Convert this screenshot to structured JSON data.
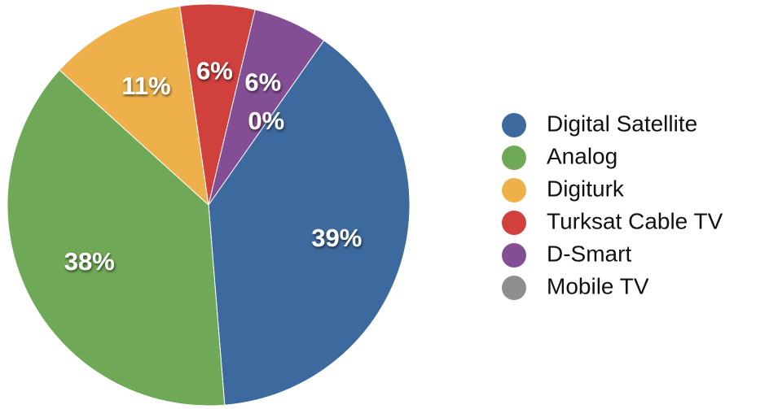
{
  "chart_data": {
    "type": "pie",
    "categories": [
      "Digital Satellite",
      "Analog",
      "Digiturk",
      "Turksat Cable TV",
      "D-Smart",
      "Mobile TV"
    ],
    "values": [
      39,
      38,
      11,
      6,
      6,
      0
    ],
    "value_labels": [
      "39%",
      "38%",
      "11%",
      "6%",
      "6%",
      "0%"
    ],
    "colors": [
      "#3d6a9e",
      "#6fa857",
      "#eeb04a",
      "#d0403d",
      "#844e94",
      "#8e8e8e"
    ],
    "legend": "right"
  }
}
